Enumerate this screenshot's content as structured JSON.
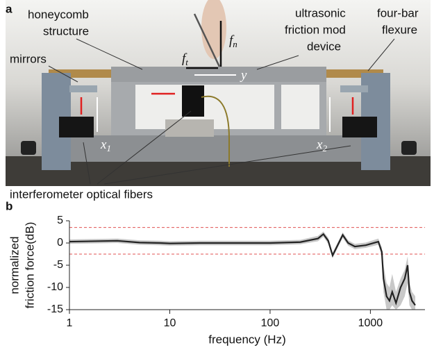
{
  "panel_a": {
    "tag": "a",
    "labels": {
      "honeycomb": [
        "honeycomb",
        "structure"
      ],
      "mirrors": [
        "mirrors"
      ],
      "device": [
        "ultrasonic",
        "friction mod",
        "device"
      ],
      "flexure": [
        "four-bar",
        "flexure"
      ],
      "fibers": [
        "interferometer optical fibers"
      ]
    },
    "math": [
      {
        "base": "f",
        "sub": "t"
      },
      {
        "base": "f",
        "sub": "n"
      },
      {
        "base": "y",
        "sub": ""
      },
      {
        "base": "x",
        "sub": "1"
      },
      {
        "base": "x",
        "sub": "2"
      }
    ]
  },
  "chart_data": {
    "type": "line",
    "tag": "b",
    "x_label": "frequency (Hz)",
    "y_label": [
      "normalized",
      "friction force(dB)"
    ],
    "x": [
      1,
      3,
      5,
      8,
      10,
      20,
      50,
      100,
      200,
      300,
      340,
      380,
      420,
      460,
      530,
      600,
      700,
      900,
      1200,
      1300,
      1350,
      1450,
      1550,
      1650,
      1800,
      2000,
      2200,
      2350,
      2450,
      2600,
      2800
    ],
    "values": [
      0.3,
      0.5,
      0.1,
      0,
      -0.1,
      0,
      0,
      0,
      0.2,
      1,
      2,
      0.5,
      -2.8,
      -1,
      1.8,
      0,
      -0.8,
      -0.5,
      0.3,
      -2,
      -8,
      -12,
      -13,
      -11,
      -13.5,
      -10,
      -8,
      -5,
      -11,
      -13,
      -14
    ],
    "band_low": [
      -0.2,
      0,
      -0.4,
      -0.5,
      -0.6,
      -0.5,
      -0.5,
      -0.5,
      -0.3,
      0.4,
      1.4,
      -0.2,
      -3.4,
      -1.6,
      1.2,
      -0.6,
      -1.4,
      -1.1,
      -0.4,
      -3,
      -11,
      -15,
      -15,
      -14,
      -15,
      -14,
      -12,
      -9,
      -14,
      -15,
      -15
    ],
    "band_high": [
      0.8,
      1,
      0.6,
      0.5,
      0.4,
      0.5,
      0.5,
      0.5,
      0.7,
      1.6,
      2.6,
      1.2,
      -2.2,
      -0.4,
      2.4,
      0.6,
      -0.2,
      0.1,
      1,
      -1,
      -5,
      -9,
      -10,
      -7,
      -11,
      -8,
      -6,
      -3,
      -9,
      -11,
      -12
    ],
    "line_color": "#222222",
    "band_color": "#c8c8c8",
    "hline_color": "#e05050",
    "hlines": [
      3.5,
      -2.5
    ],
    "xlim": [
      1,
      3500
    ],
    "ylim": [
      -15,
      5
    ],
    "log_x": true,
    "xticks": [
      1,
      10,
      100,
      1000
    ],
    "yticks": [
      5,
      0,
      -5,
      -10,
      -15
    ]
  }
}
